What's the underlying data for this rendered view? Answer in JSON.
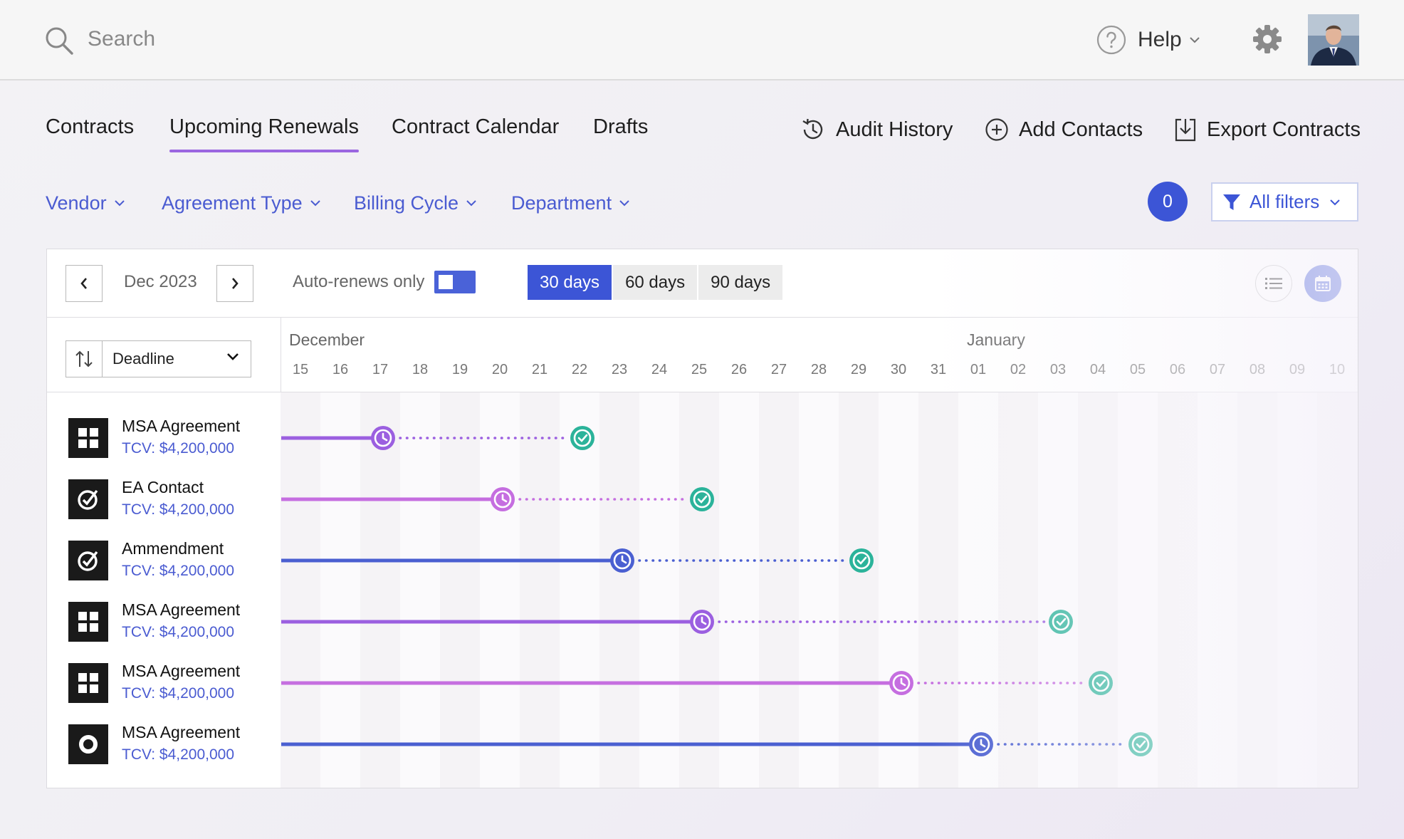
{
  "header": {
    "search": {
      "placeholder": "Search"
    },
    "help_label": "Help"
  },
  "tabs": [
    {
      "label": "Contracts",
      "active": false
    },
    {
      "label": "Upcoming Renewals",
      "active": true
    },
    {
      "label": "Contract Calendar",
      "active": false
    },
    {
      "label": "Drafts",
      "active": false
    }
  ],
  "actions": {
    "audit_history": "Audit History",
    "add_contacts": "Add Contacts",
    "export_contracts": "Export Contracts"
  },
  "filters": {
    "vendor": "Vendor",
    "agreement_type": "Agreement Type",
    "billing_cycle": "Billing Cycle",
    "department": "Department",
    "active_count": "0",
    "all_filters": "All filters"
  },
  "toolbar": {
    "month": "Dec 2023",
    "auto_renews_label": "Auto-renews only",
    "auto_renews_on": true,
    "ranges": [
      "30 days",
      "60 days",
      "90 days"
    ],
    "selected_range": "30 days"
  },
  "sort": {
    "label": "Deadline"
  },
  "timeline": {
    "months": [
      {
        "name": "December",
        "start_index": 0
      },
      {
        "name": "January",
        "start_index": 17
      }
    ],
    "days": [
      "15",
      "16",
      "17",
      "18",
      "19",
      "20",
      "21",
      "22",
      "23",
      "24",
      "25",
      "26",
      "27",
      "28",
      "29",
      "30",
      "31",
      "01",
      "02",
      "03",
      "04",
      "05",
      "06",
      "07",
      "08",
      "09",
      "10"
    ]
  },
  "contracts": [
    {
      "title": "MSA Agreement",
      "tcv": "TCV: $4,200,000",
      "icon": "grid-icon",
      "color": "#9b5fe0",
      "notice_date": "Dec 17",
      "deadline_date": "Dec 22"
    },
    {
      "title": "EA Contact",
      "tcv": "TCV: $4,200,000",
      "icon": "check-circle-icon",
      "color": "#c56ee0",
      "notice_date": "Dec 20",
      "deadline_date": "Dec 25"
    },
    {
      "title": "Ammendment",
      "tcv": "TCV: $4,200,000",
      "icon": "check-circle-icon",
      "color": "#4a5fd1",
      "notice_date": "Dec 23",
      "deadline_date": "Dec 29"
    },
    {
      "title": "MSA Agreement",
      "tcv": "TCV: $4,200,000",
      "icon": "grid-icon",
      "color": "#9b5fe0",
      "notice_date": "Dec 25",
      "deadline_date": "Jan 03"
    },
    {
      "title": "MSA Agreement",
      "tcv": "TCV: $4,200,000",
      "icon": "grid-icon",
      "color": "#c56ee0",
      "notice_date": "Dec 30",
      "deadline_date": "Jan 04"
    },
    {
      "title": "MSA Agreement",
      "tcv": "TCV: $4,200,000",
      "icon": "ring-icon",
      "color": "#4a5fd1",
      "notice_date": "Jan 01",
      "deadline_date": "Jan 05"
    }
  ],
  "colors": {
    "accent": "#3c55d6",
    "link": "#4a5bd1",
    "tab_underline": "#9b66e0",
    "deadline_check": "#2bb39a"
  }
}
